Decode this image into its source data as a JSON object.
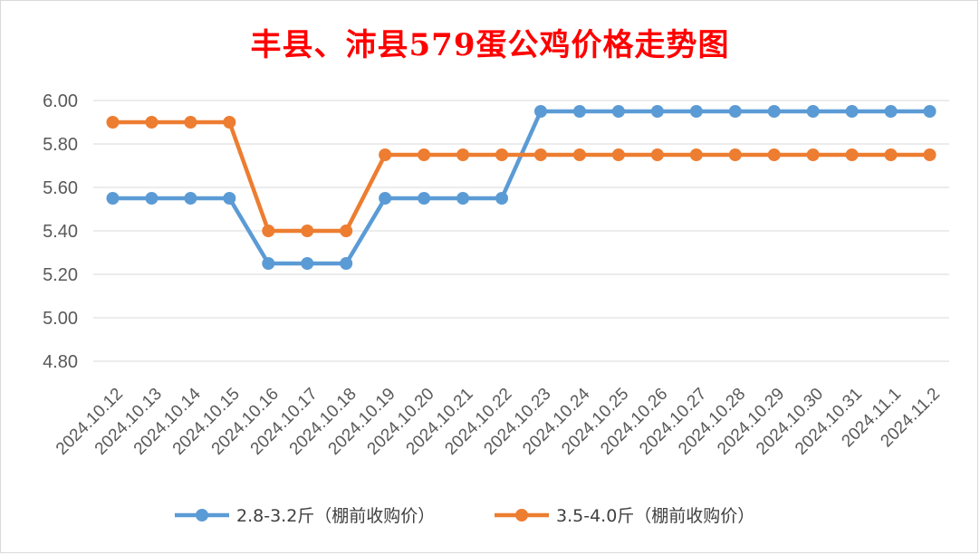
{
  "chart_data": {
    "type": "line",
    "title": "丰县、沛县579蛋公鸡价格走势图",
    "xlabel": "",
    "ylabel": "",
    "ylim": [
      4.8,
      6.0
    ],
    "yticks": [
      "6.00",
      "5.80",
      "5.60",
      "5.40",
      "5.20",
      "5.00",
      "4.80"
    ],
    "grid": true,
    "legend_position": "bottom",
    "categories": [
      "2024.10.12",
      "2024.10.13",
      "2024.10.14",
      "2024.10.15",
      "2024.10.16",
      "2024.10.17",
      "2024.10.18",
      "2024.10.19",
      "2024.10.20",
      "2024.10.21",
      "2024.10.22",
      "2024.10.23",
      "2024.10.24",
      "2024.10.25",
      "2024.10.26",
      "2024.10.27",
      "2024.10.28",
      "2024.10.29",
      "2024.10.30",
      "2024.10.31",
      "2024.11.1",
      "2024.11.2"
    ],
    "series": [
      {
        "name": "2.8-3.2斤（棚前收购价）",
        "color": "#5b9bd5",
        "values": [
          5.55,
          5.55,
          5.55,
          5.55,
          5.25,
          5.25,
          5.25,
          5.55,
          5.55,
          5.55,
          5.55,
          5.95,
          5.95,
          5.95,
          5.95,
          5.95,
          5.95,
          5.95,
          5.95,
          5.95,
          5.95,
          5.95
        ]
      },
      {
        "name": "3.5-4.0斤（棚前收购价）",
        "color": "#ed7d31",
        "values": [
          5.9,
          5.9,
          5.9,
          5.9,
          5.4,
          5.4,
          5.4,
          5.75,
          5.75,
          5.75,
          5.75,
          5.75,
          5.75,
          5.75,
          5.75,
          5.75,
          5.75,
          5.75,
          5.75,
          5.75,
          5.75,
          5.75
        ]
      }
    ]
  }
}
